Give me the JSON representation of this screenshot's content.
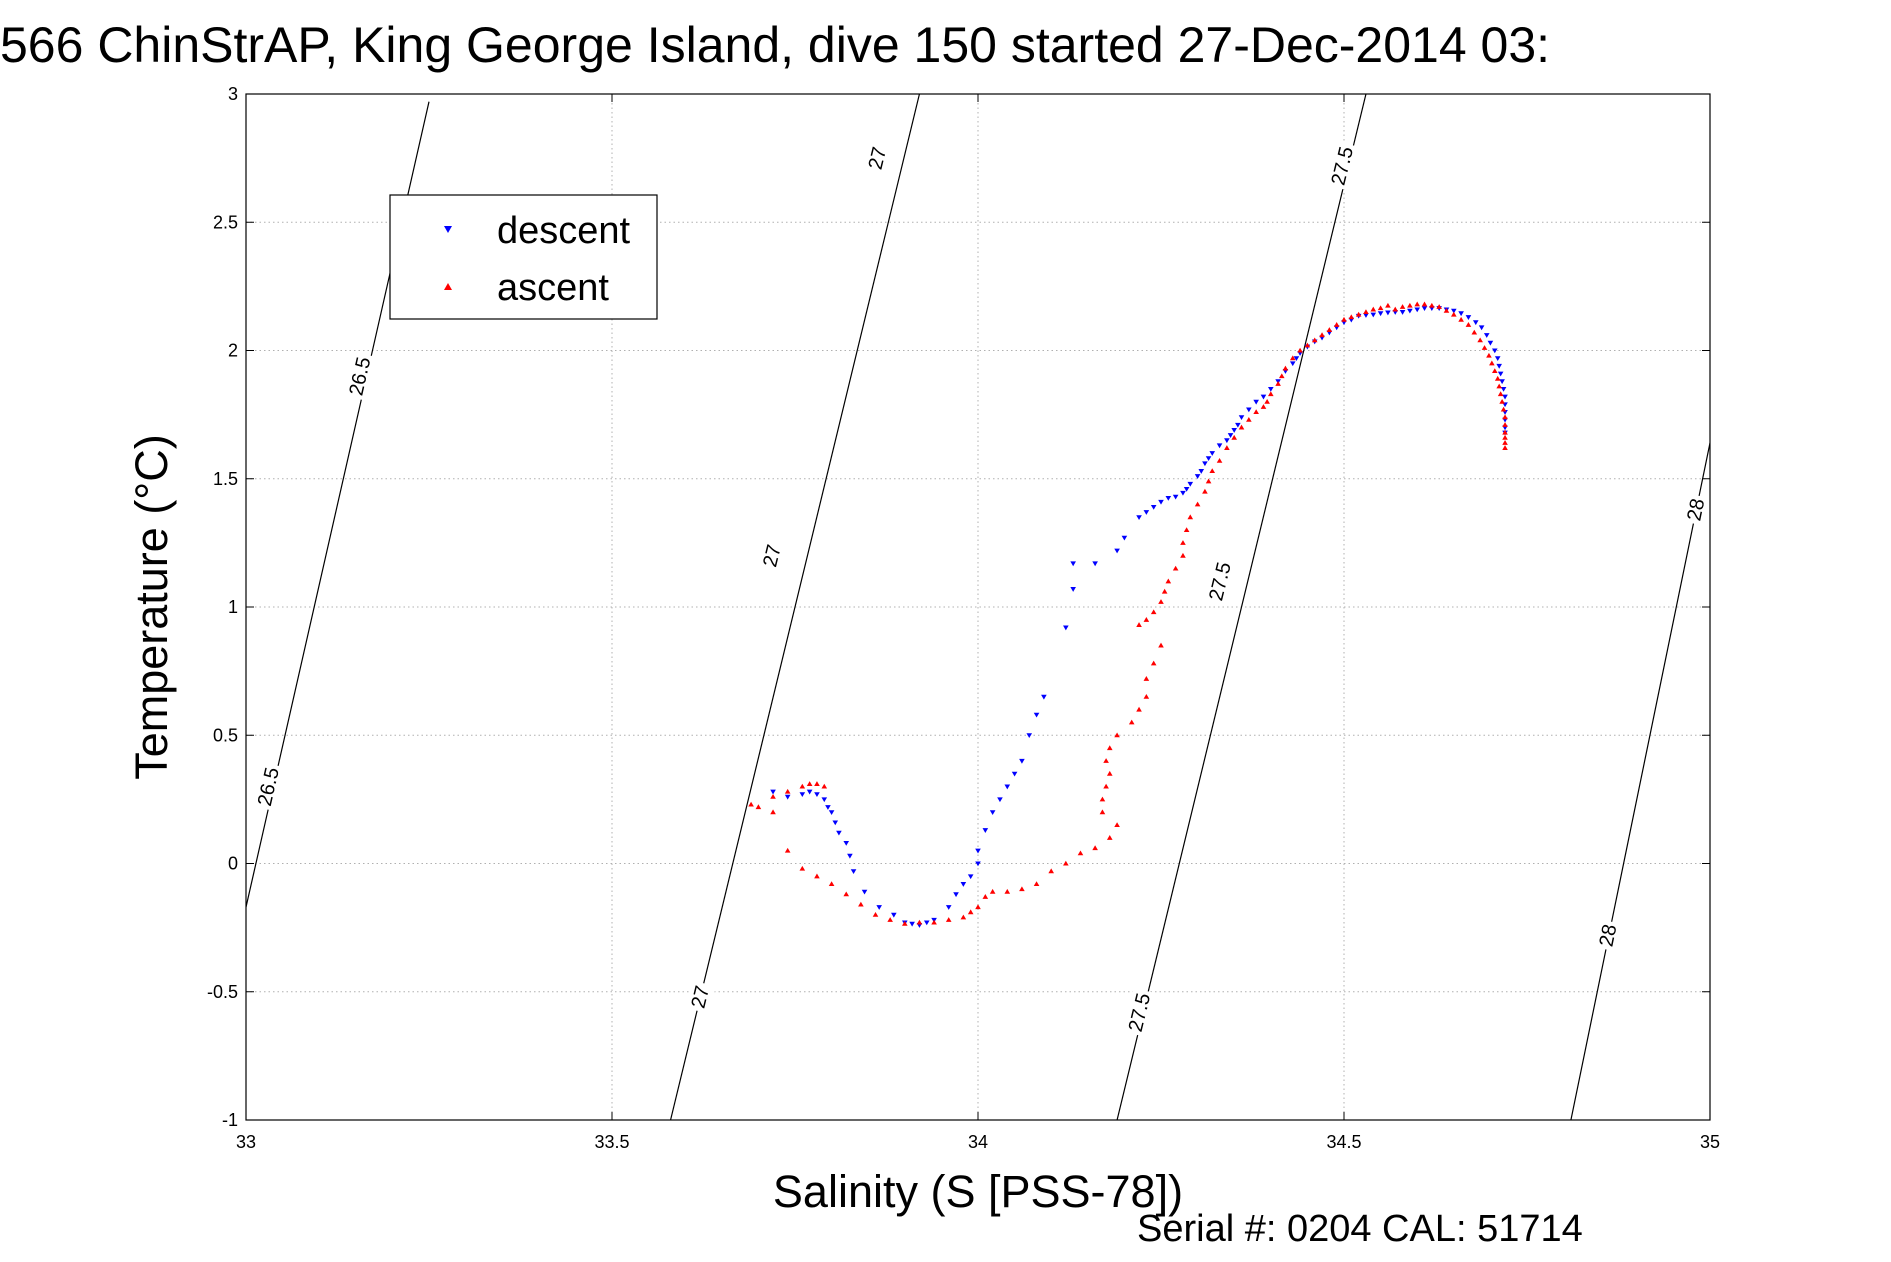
{
  "title": "566 ChinStrAP, King George Island, dive 150 started 27-Dec-2014 03:",
  "footer": "Serial #: 0204  CAL: 51714",
  "colors": {
    "descent": "#0000ff",
    "ascent": "#ff0000",
    "grid": "#b0b0b0",
    "contour": "#000000"
  },
  "chart_data": {
    "type": "scatter",
    "xlabel": "Salinity (S [PSS-78])",
    "ylabel": "Temperature (°C)",
    "xlim": [
      33,
      35
    ],
    "ylim": [
      -1,
      3
    ],
    "xticks": [
      33,
      33.5,
      34,
      34.5,
      35
    ],
    "xtick_labels": [
      "33",
      "33.5",
      "34",
      "34.5",
      "35"
    ],
    "yticks": [
      -1,
      -0.5,
      0,
      0.5,
      1,
      1.5,
      2,
      2.5,
      3
    ],
    "ytick_labels": [
      "-1",
      "-0.5",
      "0",
      "0.5",
      "1",
      "1.5",
      "2",
      "2.5",
      "3"
    ],
    "grid": true,
    "legend": {
      "position": "top-left",
      "entries": [
        "descent",
        "ascent"
      ]
    },
    "contours": [
      {
        "label": "26.5",
        "points": [
          [
            33.0,
            -0.17
          ],
          [
            33.25,
            2.97
          ]
        ],
        "label_positions": [
          [
            33.03,
            0.3
          ],
          [
            33.155,
            1.9
          ]
        ]
      },
      {
        "label": "27",
        "points": [
          [
            33.58,
            -1.0
          ],
          [
            33.92,
            3.0
          ]
        ],
        "label_positions": [
          [
            33.62,
            -0.52
          ],
          [
            33.718,
            1.2
          ],
          [
            33.862,
            2.75
          ]
        ]
      },
      {
        "label": "27.5",
        "points": [
          [
            34.19,
            -1.0
          ],
          [
            34.53,
            3.0
          ]
        ],
        "label_positions": [
          [
            34.22,
            -0.58
          ],
          [
            34.33,
            1.1
          ],
          [
            34.497,
            2.72
          ]
        ]
      },
      {
        "label": "28",
        "points": [
          [
            34.81,
            -1.0
          ],
          [
            35.0,
            1.64
          ]
        ],
        "label_positions": [
          [
            34.86,
            -0.28
          ],
          [
            34.98,
            1.38
          ]
        ]
      }
    ],
    "series": [
      {
        "name": "descent",
        "marker": "triangle-down",
        "points": [
          [
            34.72,
            1.68
          ],
          [
            34.72,
            1.7
          ],
          [
            34.72,
            1.73
          ],
          [
            34.72,
            1.76
          ],
          [
            34.72,
            1.79
          ],
          [
            34.72,
            1.82
          ],
          [
            34.718,
            1.85
          ],
          [
            34.716,
            1.88
          ],
          [
            34.714,
            1.91
          ],
          [
            34.712,
            1.94
          ],
          [
            34.71,
            1.97
          ],
          [
            34.706,
            2.0
          ],
          [
            34.7,
            2.03
          ],
          [
            34.695,
            2.06
          ],
          [
            34.688,
            2.09
          ],
          [
            34.68,
            2.11
          ],
          [
            34.67,
            2.13
          ],
          [
            34.66,
            2.145
          ],
          [
            34.65,
            2.155
          ],
          [
            34.64,
            2.16
          ],
          [
            34.63,
            2.165
          ],
          [
            34.62,
            2.165
          ],
          [
            34.61,
            2.165
          ],
          [
            34.6,
            2.16
          ],
          [
            34.59,
            2.155
          ],
          [
            34.58,
            2.15
          ],
          [
            34.57,
            2.15
          ],
          [
            34.56,
            2.148
          ],
          [
            34.55,
            2.145
          ],
          [
            34.54,
            2.14
          ],
          [
            34.53,
            2.138
          ],
          [
            34.52,
            2.135
          ],
          [
            34.51,
            2.12
          ],
          [
            34.5,
            2.11
          ],
          [
            34.49,
            2.09
          ],
          [
            34.48,
            2.07
          ],
          [
            34.47,
            2.05
          ],
          [
            34.46,
            2.035
          ],
          [
            34.45,
            2.015
          ],
          [
            34.44,
            1.99
          ],
          [
            34.435,
            1.97
          ],
          [
            34.43,
            1.95
          ],
          [
            34.42,
            1.92
          ],
          [
            34.41,
            1.88
          ],
          [
            34.4,
            1.85
          ],
          [
            34.39,
            1.82
          ],
          [
            34.38,
            1.8
          ],
          [
            34.37,
            1.77
          ],
          [
            34.36,
            1.74
          ],
          [
            34.355,
            1.71
          ],
          [
            34.35,
            1.69
          ],
          [
            34.345,
            1.67
          ],
          [
            34.34,
            1.65
          ],
          [
            34.33,
            1.63
          ],
          [
            34.32,
            1.6
          ],
          [
            34.315,
            1.58
          ],
          [
            34.31,
            1.56
          ],
          [
            34.305,
            1.53
          ],
          [
            34.3,
            1.51
          ],
          [
            34.29,
            1.48
          ],
          [
            34.285,
            1.46
          ],
          [
            34.28,
            1.445
          ],
          [
            34.27,
            1.43
          ],
          [
            34.26,
            1.425
          ],
          [
            34.25,
            1.41
          ],
          [
            34.24,
            1.39
          ],
          [
            34.23,
            1.37
          ],
          [
            34.22,
            1.35
          ],
          [
            34.2,
            1.27
          ],
          [
            34.19,
            1.22
          ],
          [
            34.16,
            1.17
          ],
          [
            34.13,
            1.17
          ],
          [
            34.13,
            1.07
          ],
          [
            34.12,
            0.92
          ],
          [
            34.09,
            0.65
          ],
          [
            34.08,
            0.58
          ],
          [
            34.07,
            0.5
          ],
          [
            34.06,
            0.4
          ],
          [
            34.05,
            0.35
          ],
          [
            34.04,
            0.3
          ],
          [
            34.03,
            0.25
          ],
          [
            34.02,
            0.2
          ],
          [
            34.01,
            0.13
          ],
          [
            34.0,
            0.05
          ],
          [
            34.0,
            0.0
          ],
          [
            33.99,
            -0.05
          ],
          [
            33.98,
            -0.08
          ],
          [
            33.97,
            -0.12
          ],
          [
            33.96,
            -0.17
          ],
          [
            33.94,
            -0.22
          ],
          [
            33.93,
            -0.23
          ],
          [
            33.92,
            -0.24
          ],
          [
            33.91,
            -0.235
          ],
          [
            33.9,
            -0.23
          ],
          [
            33.885,
            -0.2
          ],
          [
            33.865,
            -0.17
          ],
          [
            33.845,
            -0.11
          ],
          [
            33.83,
            -0.03
          ],
          [
            33.825,
            0.03
          ],
          [
            33.82,
            0.08
          ],
          [
            33.81,
            0.12
          ],
          [
            33.805,
            0.16
          ],
          [
            33.8,
            0.2
          ],
          [
            33.795,
            0.22
          ],
          [
            33.79,
            0.25
          ],
          [
            33.78,
            0.27
          ],
          [
            33.77,
            0.28
          ],
          [
            33.76,
            0.27
          ],
          [
            33.74,
            0.26
          ],
          [
            33.72,
            0.28
          ]
        ]
      },
      {
        "name": "ascent",
        "marker": "triangle-up",
        "points": [
          [
            34.72,
            1.62
          ],
          [
            34.72,
            1.64
          ],
          [
            34.72,
            1.66
          ],
          [
            34.72,
            1.68
          ],
          [
            34.72,
            1.71
          ],
          [
            34.72,
            1.74
          ],
          [
            34.718,
            1.77
          ],
          [
            34.716,
            1.8
          ],
          [
            34.714,
            1.83
          ],
          [
            34.712,
            1.86
          ],
          [
            34.71,
            1.89
          ],
          [
            34.706,
            1.92
          ],
          [
            34.702,
            1.95
          ],
          [
            34.698,
            1.98
          ],
          [
            34.692,
            2.01
          ],
          [
            34.686,
            2.04
          ],
          [
            34.678,
            2.07
          ],
          [
            34.67,
            2.1
          ],
          [
            34.66,
            2.12
          ],
          [
            34.65,
            2.14
          ],
          [
            34.64,
            2.155
          ],
          [
            34.63,
            2.17
          ],
          [
            34.62,
            2.175
          ],
          [
            34.61,
            2.18
          ],
          [
            34.6,
            2.18
          ],
          [
            34.59,
            2.175
          ],
          [
            34.58,
            2.17
          ],
          [
            34.57,
            2.16
          ],
          [
            34.56,
            2.175
          ],
          [
            34.55,
            2.165
          ],
          [
            34.54,
            2.16
          ],
          [
            34.53,
            2.15
          ],
          [
            34.52,
            2.14
          ],
          [
            34.51,
            2.13
          ],
          [
            34.5,
            2.12
          ],
          [
            34.49,
            2.1
          ],
          [
            34.48,
            2.08
          ],
          [
            34.47,
            2.06
          ],
          [
            34.46,
            2.04
          ],
          [
            34.45,
            2.02
          ],
          [
            34.44,
            2.0
          ],
          [
            34.43,
            1.97
          ],
          [
            34.42,
            1.93
          ],
          [
            34.415,
            1.9
          ],
          [
            34.41,
            1.87
          ],
          [
            34.4,
            1.83
          ],
          [
            34.395,
            1.8
          ],
          [
            34.39,
            1.78
          ],
          [
            34.38,
            1.76
          ],
          [
            34.37,
            1.73
          ],
          [
            34.36,
            1.7
          ],
          [
            34.35,
            1.66
          ],
          [
            34.34,
            1.62
          ],
          [
            34.33,
            1.57
          ],
          [
            34.32,
            1.53
          ],
          [
            34.315,
            1.49
          ],
          [
            34.31,
            1.45
          ],
          [
            34.3,
            1.4
          ],
          [
            34.29,
            1.35
          ],
          [
            34.285,
            1.3
          ],
          [
            34.28,
            1.25
          ],
          [
            34.28,
            1.2
          ],
          [
            34.27,
            1.15
          ],
          [
            34.26,
            1.1
          ],
          [
            34.255,
            1.06
          ],
          [
            34.25,
            1.02
          ],
          [
            34.24,
            0.98
          ],
          [
            34.23,
            0.95
          ],
          [
            34.22,
            0.93
          ],
          [
            34.25,
            0.85
          ],
          [
            34.24,
            0.78
          ],
          [
            34.23,
            0.72
          ],
          [
            34.23,
            0.65
          ],
          [
            34.22,
            0.6
          ],
          [
            34.21,
            0.55
          ],
          [
            34.19,
            0.5
          ],
          [
            34.18,
            0.45
          ],
          [
            34.175,
            0.4
          ],
          [
            34.18,
            0.35
          ],
          [
            34.175,
            0.3
          ],
          [
            34.17,
            0.25
          ],
          [
            34.17,
            0.2
          ],
          [
            34.19,
            0.15
          ],
          [
            34.18,
            0.1
          ],
          [
            34.16,
            0.06
          ],
          [
            34.14,
            0.04
          ],
          [
            34.12,
            0.0
          ],
          [
            34.1,
            -0.03
          ],
          [
            34.08,
            -0.08
          ],
          [
            34.06,
            -0.1
          ],
          [
            34.04,
            -0.11
          ],
          [
            34.02,
            -0.11
          ],
          [
            34.01,
            -0.13
          ],
          [
            34.0,
            -0.17
          ],
          [
            33.99,
            -0.19
          ],
          [
            33.98,
            -0.21
          ],
          [
            33.96,
            -0.22
          ],
          [
            33.94,
            -0.23
          ],
          [
            33.92,
            -0.23
          ],
          [
            33.9,
            -0.235
          ],
          [
            33.88,
            -0.22
          ],
          [
            33.86,
            -0.2
          ],
          [
            33.84,
            -0.16
          ],
          [
            33.82,
            -0.12
          ],
          [
            33.8,
            -0.08
          ],
          [
            33.78,
            -0.05
          ],
          [
            33.76,
            -0.02
          ],
          [
            33.74,
            0.05
          ],
          [
            33.72,
            0.2
          ],
          [
            33.7,
            0.22
          ],
          [
            33.69,
            0.23
          ],
          [
            33.72,
            0.26
          ],
          [
            33.74,
            0.28
          ],
          [
            33.76,
            0.3
          ],
          [
            33.77,
            0.31
          ],
          [
            33.78,
            0.31
          ],
          [
            33.79,
            0.3
          ]
        ]
      }
    ]
  }
}
